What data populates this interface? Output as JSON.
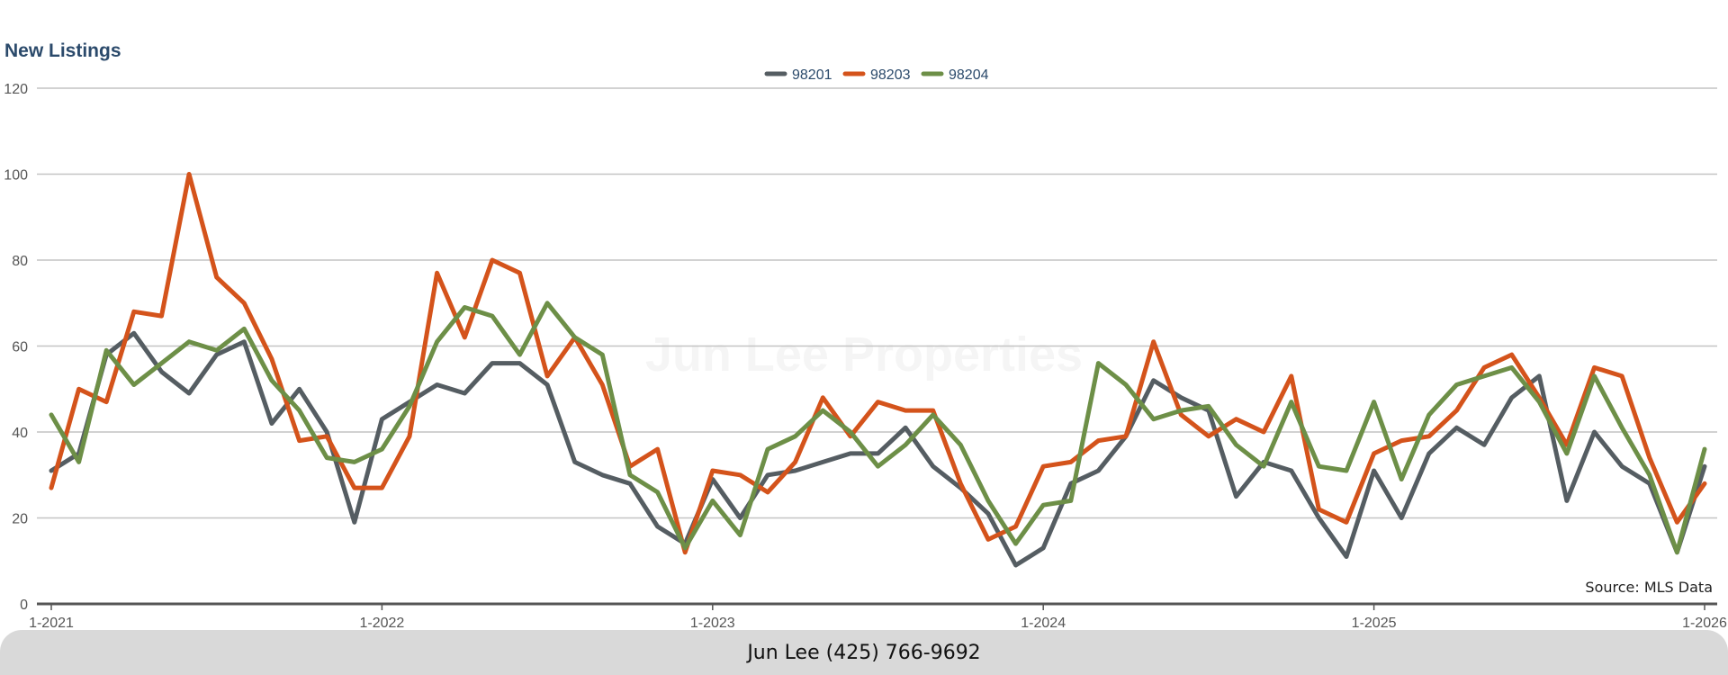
{
  "footer": {
    "contact": "Jun Lee (425) 766-9692"
  },
  "watermark": "Jun Lee Properties",
  "source_note": "Source: MLS Data",
  "chart_data": {
    "type": "line",
    "title": "New Listings",
    "xlabel": "",
    "ylabel": "",
    "ylim": [
      0,
      120
    ],
    "yticks": [
      0,
      20,
      40,
      60,
      80,
      100,
      120
    ],
    "x_tick_labels": [
      "1-2021",
      "1-2022",
      "1-2023",
      "1-2024",
      "1-2025",
      "1-2026"
    ],
    "x": [
      "1-2021",
      "2-2021",
      "3-2021",
      "4-2021",
      "5-2021",
      "6-2021",
      "7-2021",
      "8-2021",
      "9-2021",
      "10-2021",
      "11-2021",
      "12-2021",
      "1-2022",
      "2-2022",
      "3-2022",
      "4-2022",
      "5-2022",
      "6-2022",
      "7-2022",
      "8-2022",
      "9-2022",
      "10-2022",
      "11-2022",
      "12-2022",
      "1-2023",
      "2-2023",
      "3-2023",
      "4-2023",
      "5-2023",
      "6-2023",
      "7-2023",
      "8-2023",
      "9-2023",
      "10-2023",
      "11-2023",
      "12-2023",
      "1-2024",
      "2-2024",
      "3-2024",
      "4-2024",
      "5-2024",
      "6-2024",
      "7-2024",
      "8-2024",
      "9-2024",
      "10-2024",
      "11-2024",
      "12-2024",
      "1-2025",
      "2-2025",
      "3-2025",
      "4-2025",
      "5-2025",
      "6-2025",
      "7-2025",
      "8-2025",
      "9-2025",
      "10-2025",
      "11-2025",
      "12-2025",
      "1-2026"
    ],
    "grid": true,
    "legend_position": "top-center",
    "series": [
      {
        "name": "98201",
        "color": "#555d62",
        "values": [
          31,
          35,
          58,
          63,
          54,
          49,
          58,
          61,
          42,
          50,
          40,
          19,
          43,
          47,
          51,
          49,
          56,
          56,
          51,
          33,
          30,
          28,
          18,
          14,
          29,
          20,
          30,
          31,
          33,
          35,
          35,
          41,
          32,
          27,
          21,
          9,
          13,
          28,
          31,
          39,
          52,
          48,
          45,
          25,
          33,
          31,
          20,
          11,
          31,
          20,
          35,
          41,
          37,
          48,
          53,
          24,
          40,
          32,
          28,
          12,
          32
        ]
      },
      {
        "name": "98203",
        "color": "#d4531b",
        "values": [
          27,
          50,
          47,
          68,
          67,
          100,
          76,
          70,
          57,
          38,
          39,
          27,
          27,
          39,
          77,
          62,
          80,
          77,
          53,
          62,
          51,
          32,
          36,
          12,
          31,
          30,
          26,
          33,
          48,
          39,
          47,
          45,
          45,
          28,
          15,
          18,
          32,
          33,
          38,
          39,
          61,
          44,
          39,
          43,
          40,
          53,
          22,
          19,
          35,
          38,
          39,
          45,
          55,
          58,
          48,
          37,
          55,
          53,
          34,
          19,
          28
        ]
      },
      {
        "name": "98204",
        "color": "#6d8f47",
        "values": [
          44,
          33,
          59,
          51,
          56,
          61,
          59,
          64,
          52,
          45,
          34,
          33,
          36,
          46,
          61,
          69,
          67,
          58,
          70,
          62,
          58,
          30,
          26,
          13,
          24,
          16,
          36,
          39,
          45,
          40,
          32,
          37,
          44,
          37,
          24,
          14,
          23,
          24,
          56,
          51,
          43,
          45,
          46,
          37,
          32,
          47,
          32,
          31,
          47,
          29,
          44,
          51,
          53,
          55,
          47,
          35,
          53,
          41,
          30,
          12,
          36
        ]
      }
    ]
  }
}
